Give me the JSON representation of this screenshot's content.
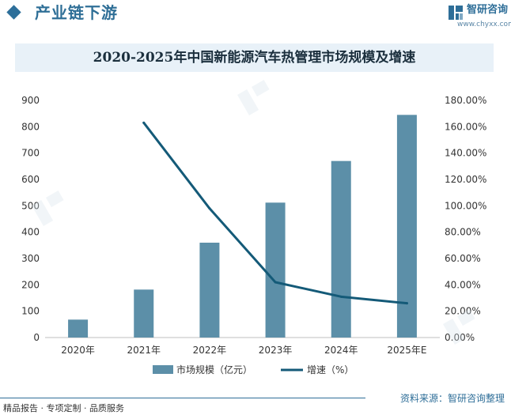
{
  "header": {
    "section_title": "产业链下游",
    "brand_name": "智研咨询",
    "brand_url": "www.chyxx.com"
  },
  "chart_data": {
    "type": "bar",
    "title": "2020-2025年中国新能源汽车热管理市场规模及增速",
    "categories": [
      "2020年",
      "2021年",
      "2022年",
      "2023年",
      "2024年",
      "2025年E"
    ],
    "series": [
      {
        "name": "市场规模（亿元）",
        "type": "bar",
        "axis": "left",
        "values": [
          68,
          182,
          360,
          512,
          670,
          845
        ]
      },
      {
        "name": "增速（%）",
        "type": "line",
        "axis": "right",
        "values": [
          null,
          163,
          98,
          42,
          31,
          26
        ]
      }
    ],
    "left_axis": {
      "min": 0,
      "max": 900,
      "ticks": [
        "0",
        "100",
        "200",
        "300",
        "400",
        "500",
        "600",
        "700",
        "800",
        "900"
      ]
    },
    "right_axis": {
      "min": 0,
      "max": 180,
      "ticks": [
        "0.00%",
        "20.00%",
        "40.00%",
        "60.00%",
        "80.00%",
        "100.00%",
        "120.00%",
        "140.00%",
        "160.00%",
        "180.00%"
      ]
    },
    "legend_position": "bottom",
    "grid": false,
    "colors": {
      "bar": "#5c8fa8",
      "line": "#145a78"
    }
  },
  "footer": {
    "left_text": "精品报告 · 专项定制 · 品质服务",
    "source": "资料来源：智研咨询整理"
  }
}
